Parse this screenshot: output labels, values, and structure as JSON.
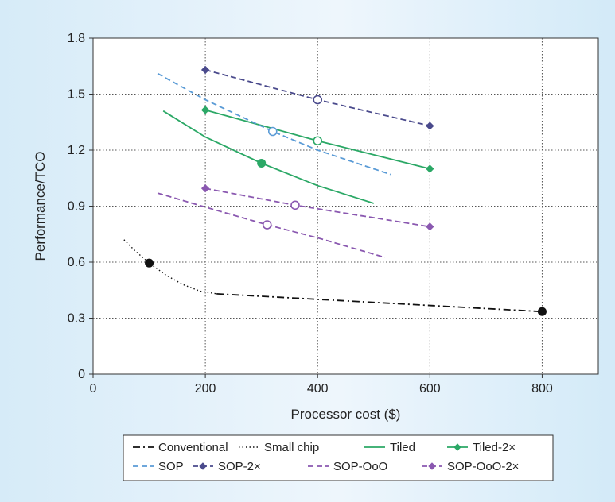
{
  "chart_data": {
    "type": "line",
    "title": "",
    "xlabel": "Processor cost ($)",
    "ylabel": "Performance/TCO",
    "xlim": [
      0,
      900
    ],
    "ylim": [
      0,
      1.8
    ],
    "x_ticks": [
      "0",
      "200",
      "400",
      "600",
      "800"
    ],
    "y_ticks": [
      "0",
      "0.3",
      "0.6",
      "0.9",
      "1.2",
      "1.5",
      "1.8"
    ],
    "grid": "dotted",
    "legend_position": "bottom",
    "series": [
      {
        "name": "Conventional",
        "color": "#111111",
        "dash": "dashdot",
        "marker": "none",
        "points": [
          [
            220,
            0.43
          ],
          [
            800,
            0.335
          ]
        ]
      },
      {
        "name": "Small chip",
        "color": "#111111",
        "dash": "dotted",
        "marker": "none",
        "points": [
          [
            55,
            0.72
          ],
          [
            75,
            0.66
          ],
          [
            100,
            0.595
          ],
          [
            130,
            0.53
          ],
          [
            160,
            0.48
          ],
          [
            190,
            0.445
          ],
          [
            220,
            0.43
          ]
        ]
      },
      {
        "name": "Tiled",
        "color": "#2ba866",
        "dash": "solid",
        "marker": "none",
        "points": [
          [
            125,
            1.41
          ],
          [
            200,
            1.27
          ],
          [
            300,
            1.13
          ],
          [
            400,
            1.01
          ],
          [
            500,
            0.915
          ]
        ]
      },
      {
        "name": "Tiled-2×",
        "color": "#2ba866",
        "dash": "solid",
        "marker": "diamond",
        "points": [
          [
            200,
            1.415
          ],
          [
            400,
            1.25
          ],
          [
            600,
            1.1
          ]
        ]
      },
      {
        "name": "SOP",
        "color": "#5a9bd6",
        "dash": "dashed",
        "marker": "none",
        "points": [
          [
            115,
            1.61
          ],
          [
            200,
            1.47
          ],
          [
            320,
            1.3
          ],
          [
            400,
            1.2
          ],
          [
            530,
            1.07
          ]
        ]
      },
      {
        "name": "SOP-2×",
        "color": "#4a4a8c",
        "dash": "dashed",
        "marker": "diamond",
        "points": [
          [
            200,
            1.63
          ],
          [
            400,
            1.47
          ],
          [
            600,
            1.33
          ]
        ]
      },
      {
        "name": "SOP-OoO",
        "color": "#8a58b0",
        "dash": "dashed",
        "marker": "none",
        "points": [
          [
            115,
            0.97
          ],
          [
            200,
            0.895
          ],
          [
            310,
            0.8
          ],
          [
            400,
            0.73
          ],
          [
            520,
            0.625
          ]
        ]
      },
      {
        "name": "SOP-OoO-2×",
        "color": "#8a58b0",
        "dash": "dashed",
        "marker": "diamond",
        "points": [
          [
            200,
            0.995
          ],
          [
            360,
            0.905
          ],
          [
            600,
            0.79
          ]
        ]
      }
    ],
    "highlight_points": [
      {
        "series": "Small chip",
        "x": 100,
        "y": 0.595,
        "style": "filled",
        "color": "#111111"
      },
      {
        "series": "Conventional",
        "x": 800,
        "y": 0.335,
        "style": "filled",
        "color": "#111111"
      },
      {
        "series": "Tiled",
        "x": 300,
        "y": 1.13,
        "style": "filled",
        "color": "#2ba866"
      },
      {
        "series": "Tiled-2×",
        "x": 400,
        "y": 1.25,
        "style": "hollow",
        "color": "#2ba866"
      },
      {
        "series": "SOP",
        "x": 320,
        "y": 1.3,
        "style": "hollow",
        "color": "#5a9bd6"
      },
      {
        "series": "SOP-2×",
        "x": 400,
        "y": 1.47,
        "style": "hollow",
        "color": "#4a4a8c"
      },
      {
        "series": "SOP-OoO",
        "x": 310,
        "y": 0.8,
        "style": "hollow",
        "color": "#8a58b0"
      },
      {
        "series": "SOP-OoO-2×",
        "x": 360,
        "y": 0.905,
        "style": "hollow",
        "color": "#8a58b0"
      }
    ]
  }
}
